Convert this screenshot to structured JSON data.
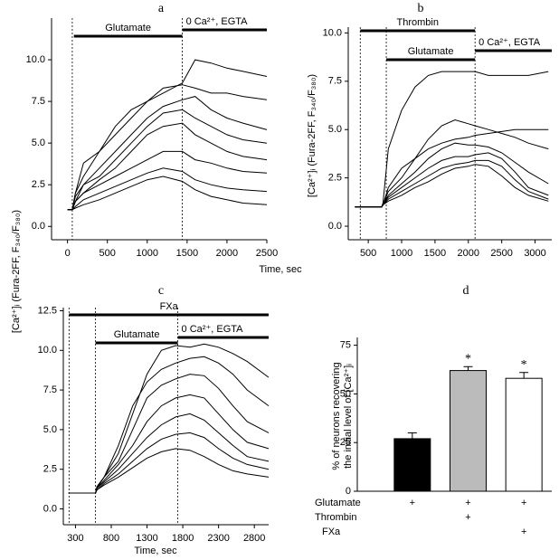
{
  "chart_data": [
    {
      "type": "line",
      "panel": "a",
      "xlabel": "Time, sec",
      "ylabel": "[Ca²⁺]ᵢ (Fura-2FF, F₃₄₀/F₃₈₀)",
      "xlim": [
        -200,
        2500
      ],
      "ylim": [
        -0.8,
        12.5
      ],
      "xticks": [
        0,
        500,
        1000,
        1500,
        2000,
        2500
      ],
      "yticks": [
        {
          "value": 0,
          "label": "0.0"
        },
        2.5,
        {
          "value": 5,
          "label": "5.0"
        },
        7.5,
        {
          "value": 10,
          "label": "10.0"
        }
      ],
      "vlines": [
        60,
        1440
      ],
      "annotations": [
        {
          "text": "Glutamate",
          "start": 80,
          "end": 1440
        },
        {
          "text": "0 Ca²⁺, EGTA",
          "start": 1440,
          "end": 2500
        }
      ],
      "x": [
        0,
        60,
        100,
        200,
        400,
        600,
        800,
        1000,
        1200,
        1440,
        1600,
        1800,
        2000,
        2200,
        2500
      ],
      "series": [
        {
          "color": "#000000",
          "values": [
            1,
            1,
            2,
            3,
            4.5,
            6,
            7,
            7.5,
            8,
            8.6,
            10,
            9.8,
            9.5,
            9.3,
            9
          ]
        },
        {
          "color": "#000000",
          "values": [
            1,
            1,
            2,
            3.8,
            4.5,
            5.5,
            6.5,
            7.5,
            8.3,
            8.5,
            8.3,
            8,
            8,
            7.8,
            7.6
          ]
        },
        {
          "color": "#000000",
          "values": [
            1,
            1,
            1.5,
            2.5,
            3.5,
            4.5,
            5.5,
            6.5,
            7.2,
            7.6,
            7.8,
            7,
            6.5,
            6.2,
            5.8
          ]
        },
        {
          "color": "#000000",
          "values": [
            1,
            1,
            1.8,
            2.5,
            3,
            4,
            5,
            6,
            6.8,
            7,
            6.5,
            6,
            5.5,
            5.2,
            5
          ]
        },
        {
          "color": "#000000",
          "values": [
            1,
            1,
            1.5,
            2,
            2.8,
            3.5,
            4.5,
            5.5,
            6,
            6.2,
            5.5,
            5,
            4.5,
            4.2,
            4
          ]
        },
        {
          "color": "#000000",
          "values": [
            1,
            1,
            1.5,
            2,
            2.5,
            3,
            3.5,
            4,
            4.5,
            4.5,
            4,
            3.8,
            3.5,
            3.3,
            3.2
          ]
        },
        {
          "color": "#000000",
          "values": [
            1,
            1,
            1.2,
            1.6,
            2,
            2.4,
            2.8,
            3.2,
            3.5,
            3.3,
            2.8,
            2.5,
            2.3,
            2.2,
            2.1
          ]
        },
        {
          "color": "#000000",
          "values": [
            1,
            1,
            1.1,
            1.3,
            1.6,
            2,
            2.4,
            2.8,
            3,
            2.7,
            2.2,
            1.8,
            1.6,
            1.4,
            1.3
          ]
        }
      ]
    },
    {
      "type": "line",
      "panel": "b",
      "ylabel": "[Ca²⁺]ᵢ (Fura-2FF, F₃₄₀/F₃₈₀)",
      "xlim": [
        200,
        3250
      ],
      "ylim": [
        -0.7,
        10.3
      ],
      "xticks": [
        500,
        1000,
        1500,
        2000,
        2500,
        3000
      ],
      "yticks": [
        {
          "value": 0,
          "label": "0.0"
        },
        2.5,
        {
          "value": 5,
          "label": "5.0"
        },
        7.5,
        {
          "value": 10,
          "label": "10.0"
        }
      ],
      "vlines": [
        380,
        770,
        2100
      ],
      "annotations": [
        {
          "text": "Thrombin",
          "start": 380,
          "end": 2100
        },
        {
          "text": "Glutamate",
          "start": 770,
          "end": 2100
        },
        {
          "text": "0 Ca²⁺, EGTA",
          "start": 2100,
          "end": 3250
        }
      ],
      "x": [
        300,
        700,
        720,
        800,
        1000,
        1200,
        1400,
        1600,
        1800,
        2000,
        2100,
        2300,
        2500,
        2700,
        2900,
        3200
      ],
      "series": [
        {
          "color": "#000000",
          "values": [
            1,
            1,
            1.2,
            4,
            6,
            7.2,
            7.8,
            8,
            8,
            8,
            8,
            7.8,
            7.8,
            7.8,
            7.8,
            8
          ]
        },
        {
          "color": "#000000",
          "values": [
            1,
            1,
            1.1,
            2,
            3,
            3.5,
            4,
            4.3,
            4.5,
            4.6,
            4.7,
            4.8,
            4.9,
            5,
            5,
            5
          ]
        },
        {
          "color": "#000000",
          "values": [
            1,
            1,
            1.1,
            1.8,
            2.5,
            3.5,
            4.5,
            5.2,
            5.5,
            5.3,
            5.2,
            5,
            4.8,
            4.6,
            4.3,
            4
          ]
        },
        {
          "color": "#000000",
          "values": [
            1,
            1,
            1.1,
            1.6,
            2.2,
            2.8,
            3.5,
            4,
            4.3,
            4.2,
            4.2,
            4.1,
            3.8,
            3.3,
            2.8,
            2.2
          ]
        },
        {
          "color": "#000000",
          "values": [
            1,
            1,
            1.1,
            1.5,
            2,
            2.5,
            3,
            3.4,
            3.6,
            3.6,
            3.7,
            3.8,
            3.5,
            2.8,
            2,
            1.6
          ]
        },
        {
          "color": "#000000",
          "values": [
            1,
            1,
            1.1,
            1.4,
            1.8,
            2.2,
            2.6,
            3,
            3.2,
            3.3,
            3.4,
            3.4,
            3.1,
            2.4,
            1.8,
            1.4
          ]
        },
        {
          "color": "#000000",
          "values": [
            1,
            1,
            1.1,
            1.3,
            1.6,
            2,
            2.3,
            2.7,
            3,
            3.1,
            3.2,
            3.1,
            2.6,
            2,
            1.6,
            1.3
          ]
        }
      ]
    },
    {
      "type": "line",
      "panel": "c",
      "xlabel": "Time, sec",
      "xlim": [
        130,
        3000
      ],
      "ylim": [
        -1,
        12.7
      ],
      "xticks": [
        300,
        800,
        1300,
        1800,
        2300,
        2800
      ],
      "yticks": [
        {
          "value": 0,
          "label": "0.0"
        },
        2.5,
        {
          "value": 5,
          "label": "5.0"
        },
        7.5,
        {
          "value": 10,
          "label": "10.0"
        },
        12.5
      ],
      "vlines": [
        210,
        580,
        1730
      ],
      "annotations": [
        {
          "text": "FXa",
          "start": 210,
          "end": 3000
        },
        {
          "text": "Glutamate",
          "start": 580,
          "end": 1730
        },
        {
          "text": "0 Ca²⁺, EGTA",
          "start": 1730,
          "end": 3000
        }
      ],
      "x": [
        200,
        580,
        600,
        700,
        900,
        1100,
        1300,
        1500,
        1700,
        1900,
        2100,
        2300,
        2500,
        2700,
        3000
      ],
      "series": [
        {
          "color": "#000000",
          "values": [
            1,
            1,
            1.4,
            2,
            3.5,
            6,
            8.5,
            10,
            10.3,
            10.2,
            10.4,
            10.2,
            9.8,
            9.3,
            8.3
          ]
        },
        {
          "color": "#000000",
          "values": [
            1,
            1,
            1.4,
            2,
            4,
            6.5,
            8,
            8.8,
            9.2,
            9.5,
            9.6,
            9.2,
            8.5,
            7.5,
            6.5
          ]
        },
        {
          "color": "#000000",
          "values": [
            1,
            1,
            1.3,
            2,
            3,
            5,
            7,
            7.8,
            8.2,
            8.5,
            8.4,
            7.6,
            6.5,
            5.5,
            4.8
          ]
        },
        {
          "color": "#000000",
          "values": [
            1,
            1,
            1.3,
            1.8,
            2.8,
            4,
            5.5,
            6.5,
            7,
            7.2,
            7,
            6,
            5,
            4.2,
            3.8
          ]
        },
        {
          "color": "#000000",
          "values": [
            1,
            1,
            1.3,
            1.7,
            2.5,
            3.5,
            4.5,
            5.3,
            5.8,
            6,
            5.6,
            4.8,
            4,
            3.3,
            3
          ]
        },
        {
          "color": "#000000",
          "values": [
            1,
            1,
            1.2,
            1.6,
            2.2,
            3,
            3.8,
            4.4,
            4.7,
            4.8,
            4.5,
            3.8,
            3.2,
            2.8,
            2.5
          ]
        },
        {
          "color": "#000000",
          "values": [
            1,
            1,
            1.2,
            1.5,
            2,
            2.6,
            3.2,
            3.6,
            3.8,
            3.7,
            3.3,
            2.8,
            2.4,
            2.2,
            2
          ]
        }
      ]
    },
    {
      "type": "bar",
      "panel": "d",
      "ylabel": [
        "% of neurons recovering",
        "the initial level of [Ca²⁺]ᵢ"
      ],
      "ylim": [
        0,
        79
      ],
      "yticks": [
        0,
        25,
        50,
        75
      ],
      "values": [
        27,
        62,
        58
      ],
      "errors": [
        3,
        2,
        3
      ],
      "colors": [
        "#000000",
        "#bbbbbb",
        "#ffffff"
      ],
      "annotations": [
        null,
        "*",
        "*"
      ],
      "conditions": [
        {
          "label": "Glutamate",
          "marks": [
            "+",
            "+",
            "+"
          ]
        },
        {
          "label": "Thrombin",
          "marks": [
            null,
            "+",
            null
          ]
        },
        {
          "label": "FXa",
          "marks": [
            null,
            null,
            "+"
          ]
        }
      ]
    }
  ]
}
